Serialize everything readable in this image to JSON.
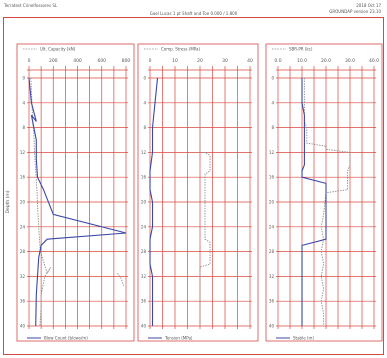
{
  "header": {
    "left": "Terratest Crinelfossores SL",
    "date": "2018 Oct 17",
    "version": "GROUNDAP version 23.10",
    "title": "Gael Lucas 1 pt Shaft and Toe 0.000 / 1.800"
  },
  "colors": {
    "grid": "#d9473f",
    "frame": "#d44848",
    "blue_series": "#3a48a6",
    "dotted_series": "#8a8a8a",
    "text": "#555555"
  },
  "chart_data": [
    {
      "type": "line",
      "ylabel": "Depth (m)",
      "ylim": [
        0,
        40
      ],
      "yticks": [
        "0",
        "4",
        "8",
        "12",
        "16",
        "20",
        "24",
        "28",
        "32",
        "36",
        "40"
      ],
      "xlim": [
        0,
        800
      ],
      "xticks": [
        "0",
        "200",
        "400",
        "600",
        "800"
      ],
      "legend_top": "Ult. Capacity (kN)",
      "legend_bottom": "Blow Count (blows/m)",
      "series": [
        {
          "name": "Ult. Capacity (kN)",
          "style": "dotted",
          "x": [
            15,
            25,
            30,
            40,
            45,
            55,
            65,
            72,
            80,
            90,
            95,
            150,
            180,
            130,
            100,
            100,
            90
          ],
          "y": [
            0,
            4,
            7,
            9,
            12,
            15,
            18,
            21,
            24,
            27,
            28,
            31.5,
            30.5,
            32,
            35,
            37,
            40
          ]
        },
        {
          "name": "Blow Count (blows/m)",
          "style": "solid",
          "x": [
            0,
            20,
            60,
            20,
            60,
            60,
            70,
            120,
            200,
            800,
            150,
            100,
            80,
            70,
            60,
            55
          ],
          "y": [
            0,
            4,
            7,
            6,
            10,
            13,
            16,
            18,
            22,
            25,
            26,
            27,
            29,
            32,
            35,
            40
          ]
        },
        {
          "name": "marker",
          "style": "dotted",
          "x": [
            730,
            760,
            780
          ],
          "y": [
            31.5,
            32.3,
            33.5
          ]
        }
      ]
    },
    {
      "type": "line",
      "ylim": [
        0,
        40
      ],
      "yticks": [
        "0",
        "4",
        "8",
        "12",
        "16",
        "20",
        "24",
        "28",
        "32",
        "36",
        "40"
      ],
      "xlim": [
        0,
        40
      ],
      "xticks": [
        "0",
        "10",
        "20",
        "30",
        "40"
      ],
      "legend_top": "Comp. Stress (MPa)",
      "legend_bottom": "Tension (MPa)",
      "series": [
        {
          "name": "Comp. Stress (MPa)",
          "style": "dotted",
          "x": [
            20,
            20,
            20,
            22,
            24,
            24,
            22,
            22,
            24,
            24,
            20,
            20,
            20
          ],
          "y": [
            0,
            11,
            12,
            12,
            12.5,
            15,
            15.5,
            26,
            26.5,
            30,
            30.5,
            31,
            40
          ]
        },
        {
          "name": "Tension (MPa)",
          "style": "solid",
          "x": [
            3,
            2,
            1,
            1,
            0,
            0,
            1,
            1,
            0,
            0,
            1,
            1,
            1
          ],
          "y": [
            0,
            4,
            8,
            12,
            15,
            18,
            20,
            24,
            26,
            30,
            32,
            36,
            40
          ]
        }
      ]
    },
    {
      "type": "line",
      "ylim": [
        0,
        40
      ],
      "yticks": [
        "0",
        "4",
        "8",
        "12",
        "16",
        "20",
        "24",
        "28",
        "32",
        "36",
        "40"
      ],
      "xlim": [
        0,
        40
      ],
      "xticks": [
        "0.0",
        "10.0",
        "20.0",
        "30.0",
        "40.0"
      ],
      "legend_top": "SBR-PR (kc)",
      "legend_bottom": "Stable (m)",
      "series": [
        {
          "name": "SBR-PR (kc)",
          "style": "dotted",
          "x": [
            11,
            11,
            12,
            12,
            20,
            20,
            30,
            30,
            29,
            29,
            20,
            19,
            18,
            19,
            18,
            19,
            18,
            19,
            18,
            19,
            19
          ],
          "y": [
            0,
            7,
            8,
            10.5,
            11,
            11.5,
            12,
            14,
            15,
            18,
            18.5,
            22,
            24,
            26,
            28,
            30,
            32,
            34,
            36,
            38,
            40
          ]
        },
        {
          "name": "Stable (m)",
          "style": "solid",
          "x": [
            10,
            10,
            11,
            11,
            10,
            10,
            20,
            20,
            10,
            10,
            10
          ],
          "y": [
            0,
            4,
            6,
            14,
            15,
            16,
            17,
            26,
            27,
            30,
            40
          ]
        }
      ]
    }
  ]
}
